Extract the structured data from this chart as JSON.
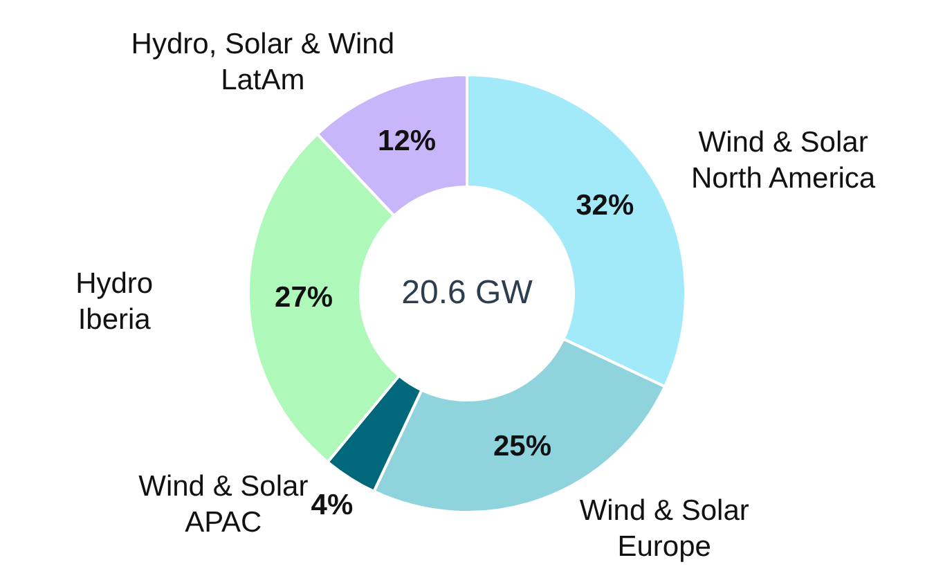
{
  "chart_data": {
    "type": "donut",
    "categories": [
      "Wind & Solar\nNorth America",
      "Wind & Solar\nEurope",
      "Wind & Solar\nAPAC",
      "Hydro\nIberia",
      "Hydro, Solar & Wind\nLatAm"
    ],
    "values": [
      32,
      25,
      4,
      27,
      12
    ],
    "value_labels": [
      "32%",
      "25%",
      "4%",
      "27%",
      "12%"
    ],
    "colors": [
      "#a2eafa",
      "#8fd3dd",
      "#00687a",
      "#aef8b9",
      "#c9b5fa"
    ],
    "annotations": [
      "20.6 GW"
    ]
  }
}
